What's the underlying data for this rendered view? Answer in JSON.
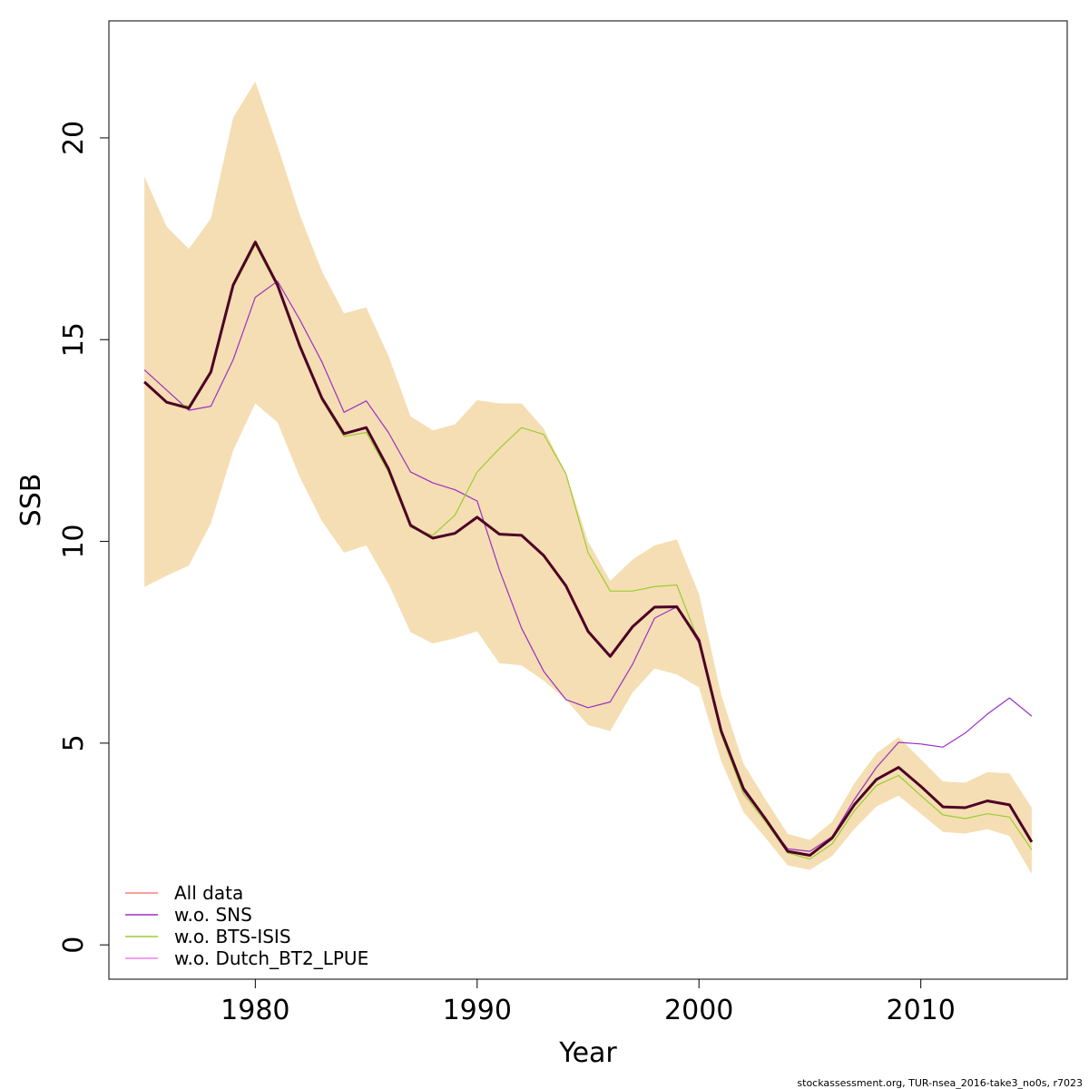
{
  "footer": "stockassessment.org, TUR-nsea_2016-take3_no0s, r7023",
  "chart_data": {
    "type": "line",
    "xlabel": "Year",
    "ylabel": "SSB",
    "xlim": [
      1973.4,
      2016.6
    ],
    "ylim": [
      -0.85,
      22.9
    ],
    "xticks": [
      1980,
      1990,
      2000,
      2010
    ],
    "yticks": [
      0,
      5,
      10,
      15,
      20
    ],
    "x": [
      1975,
      1976,
      1977,
      1978,
      1979,
      1980,
      1981,
      1982,
      1983,
      1984,
      1985,
      1986,
      1987,
      1988,
      1989,
      1990,
      1991,
      1992,
      1993,
      1994,
      1995,
      1996,
      1997,
      1998,
      1999,
      2000,
      2001,
      2002,
      2003,
      2004,
      2005,
      2006,
      2007,
      2008,
      2009,
      2010,
      2011,
      2012,
      2013,
      2014,
      2015
    ],
    "confidence_band": {
      "color": "#f5deb3",
      "upper": [
        19.05,
        17.8,
        17.25,
        18.0,
        20.5,
        21.4,
        19.8,
        18.1,
        16.7,
        15.65,
        15.8,
        14.6,
        13.1,
        12.75,
        12.9,
        13.5,
        13.42,
        13.42,
        12.8,
        11.7,
        10.0,
        9.02,
        9.55,
        9.9,
        10.05,
        8.7,
        6.2,
        4.5,
        3.6,
        2.75,
        2.6,
        3.05,
        4.0,
        4.75,
        5.15,
        4.6,
        4.05,
        4.02,
        4.28,
        4.25,
        3.4
      ],
      "lower": [
        8.87,
        9.15,
        9.4,
        10.45,
        12.25,
        13.42,
        12.95,
        11.6,
        10.5,
        9.72,
        9.9,
        8.95,
        7.75,
        7.47,
        7.6,
        7.77,
        6.98,
        6.93,
        6.55,
        6.08,
        5.45,
        5.3,
        6.25,
        6.85,
        6.7,
        6.38,
        4.55,
        3.3,
        2.65,
        1.97,
        1.86,
        2.2,
        2.87,
        3.43,
        3.7,
        3.25,
        2.8,
        2.76,
        2.87,
        2.7,
        1.76
      ]
    },
    "series": [
      {
        "name": "All data",
        "color": "#ff7f7f",
        "values": [
          13.95,
          13.45,
          13.3,
          14.2,
          16.35,
          17.42,
          16.35,
          14.85,
          13.55,
          12.67,
          12.82,
          11.8,
          10.4,
          10.08,
          10.2,
          10.6,
          10.18,
          10.15,
          9.65,
          8.9,
          7.77,
          7.15,
          7.88,
          8.37,
          8.38,
          7.55,
          5.3,
          3.88,
          3.12,
          2.32,
          2.22,
          2.65,
          3.47,
          4.1,
          4.4,
          3.93,
          3.42,
          3.4,
          3.57,
          3.47,
          2.55
        ]
      },
      {
        "name": "w.o. SNS",
        "color": "#9b30c2",
        "values": [
          14.25,
          13.75,
          13.25,
          13.35,
          14.5,
          16.05,
          16.45,
          15.5,
          14.45,
          13.2,
          13.48,
          12.7,
          11.72,
          11.45,
          11.28,
          11.0,
          9.3,
          7.85,
          6.78,
          6.08,
          5.88,
          6.02,
          6.95,
          8.1,
          8.38,
          7.48,
          5.35,
          3.82,
          3.1,
          2.38,
          2.32,
          2.68,
          3.6,
          4.4,
          5.02,
          4.98,
          4.9,
          5.25,
          5.72,
          6.12,
          5.67
        ]
      },
      {
        "name": "w.o. BTS-ISIS",
        "color": "#9acd32",
        "values": [
          13.95,
          13.45,
          13.35,
          14.2,
          16.3,
          17.35,
          16.3,
          14.8,
          13.5,
          12.6,
          12.7,
          11.72,
          10.35,
          10.15,
          10.65,
          11.72,
          12.3,
          12.82,
          12.65,
          11.68,
          9.72,
          8.77,
          8.77,
          8.88,
          8.92,
          7.5,
          5.22,
          3.75,
          3.05,
          2.28,
          2.13,
          2.5,
          3.32,
          3.95,
          4.2,
          3.7,
          3.22,
          3.13,
          3.25,
          3.17,
          2.36
        ]
      },
      {
        "name": "w.o. Dutch_BT2_LPUE",
        "color": "#ee82ee",
        "values": [
          13.97,
          13.47,
          13.3,
          14.22,
          16.36,
          17.43,
          16.36,
          14.86,
          13.56,
          12.68,
          12.83,
          11.8,
          10.41,
          10.09,
          10.21,
          10.61,
          10.19,
          10.16,
          9.66,
          8.91,
          7.78,
          7.16,
          7.89,
          8.38,
          8.39,
          7.56,
          5.31,
          3.89,
          3.13,
          2.33,
          2.23,
          2.66,
          3.48,
          4.11,
          4.41,
          3.94,
          3.43,
          3.41,
          3.58,
          3.48,
          2.56
        ]
      },
      {
        "name": "",
        "color": "#4d0026",
        "width": 3,
        "values": [
          13.95,
          13.45,
          13.3,
          14.2,
          16.35,
          17.42,
          16.35,
          14.85,
          13.55,
          12.67,
          12.82,
          11.8,
          10.4,
          10.08,
          10.2,
          10.6,
          10.18,
          10.15,
          9.65,
          8.9,
          7.77,
          7.15,
          7.88,
          8.37,
          8.38,
          7.55,
          5.3,
          3.88,
          3.12,
          2.32,
          2.22,
          2.65,
          3.47,
          4.1,
          4.4,
          3.93,
          3.42,
          3.4,
          3.57,
          3.47,
          2.55
        ]
      }
    ],
    "legend_position": "bottom-left",
    "grid": false
  }
}
